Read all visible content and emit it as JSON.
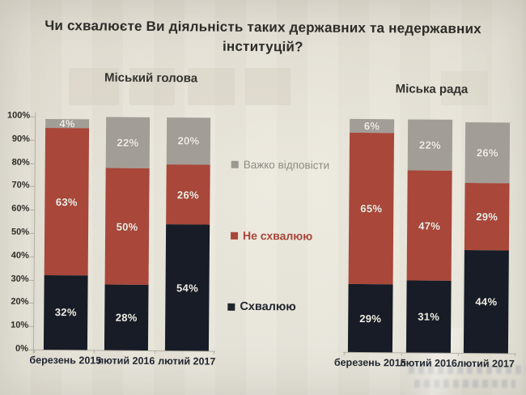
{
  "title": "Чи схвалюєте Ви діяльність таких державних та недержавних інституцій?",
  "legend": {
    "items": [
      {
        "label": "Важко відповісти",
        "color": "#9c9892",
        "text_color": "#8f8b83"
      },
      {
        "label": "Не схвалюю",
        "color": "#a8473a",
        "text_color": "#a7463a"
      },
      {
        "label": "Схвалюю",
        "color": "#20242c",
        "text_color": "#1f232b"
      }
    ]
  },
  "y_axis": {
    "tick_labels": [
      "100%",
      "90%",
      "80%",
      "70%",
      "60%",
      "50%",
      "40%",
      "30%",
      "20%",
      "10%",
      "0%"
    ]
  },
  "chart_data": [
    {
      "type": "bar",
      "stacked": true,
      "title": "Міський голова",
      "categories": [
        "березень 2015",
        "лютий 2016",
        "лютий 2017"
      ],
      "series": [
        {
          "name": "Схвалюю",
          "color": "#171c26",
          "values": [
            32,
            28,
            54
          ]
        },
        {
          "name": "Не схвалюю",
          "color": "#a8473a",
          "values": [
            63,
            50,
            26
          ]
        },
        {
          "name": "Важко відповісти",
          "color": "#a29e97",
          "values": [
            4,
            22,
            20
          ]
        }
      ],
      "ylim": [
        0,
        100
      ],
      "y_axis_visible": true,
      "grid": false,
      "value_suffix": "%",
      "legend_position": "center-between-charts"
    },
    {
      "type": "bar",
      "stacked": true,
      "title": "Міська рада",
      "categories": [
        "березень 2015",
        "лютий 2016",
        "лютий 2017"
      ],
      "series": [
        {
          "name": "Схвалюю",
          "color": "#171c26",
          "values": [
            29,
            31,
            44
          ]
        },
        {
          "name": "Не схвалюю",
          "color": "#a8473a",
          "values": [
            65,
            47,
            29
          ]
        },
        {
          "name": "Важко відповісти",
          "color": "#a29e97",
          "values": [
            6,
            22,
            26
          ]
        }
      ],
      "ylim": [
        0,
        100
      ],
      "y_axis_visible": false,
      "grid": false,
      "value_suffix": "%",
      "legend_position": "center-between-charts"
    }
  ]
}
